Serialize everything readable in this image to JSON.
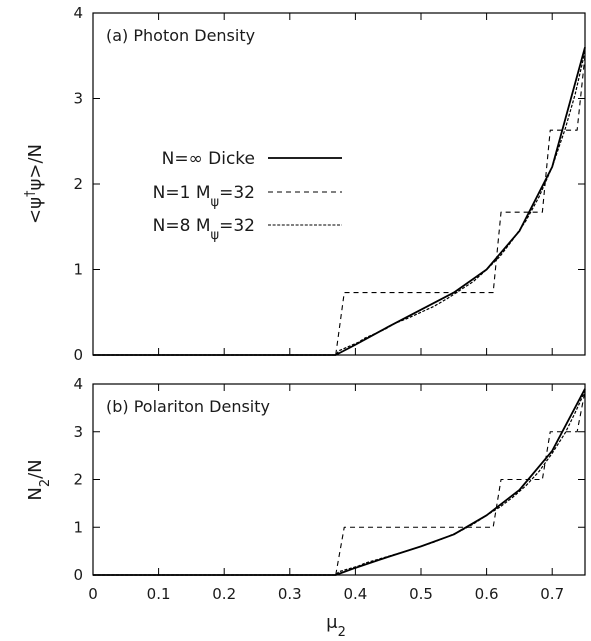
{
  "chart_data": [
    {
      "type": "line",
      "panel_title": "(a) Photon Density",
      "ylabel": "<ψ†ψ>/N",
      "xlabel": "",
      "xlim": [
        0,
        0.75
      ],
      "ylim": [
        0,
        4
      ],
      "x_ticks": [],
      "y_ticks": [
        "0",
        "1",
        "2",
        "3",
        "4"
      ],
      "legend_position": "center-left",
      "series": [
        {
          "name": "N=∞ Dicke",
          "style": "solid",
          "points": [
            [
              0,
              0
            ],
            [
              0.1,
              0
            ],
            [
              0.2,
              0
            ],
            [
              0.3,
              0
            ],
            [
              0.37,
              0
            ],
            [
              0.4,
              0.12
            ],
            [
              0.45,
              0.33
            ],
            [
              0.5,
              0.53
            ],
            [
              0.55,
              0.73
            ],
            [
              0.6,
              1.0
            ],
            [
              0.65,
              1.45
            ],
            [
              0.7,
              2.2
            ],
            [
              0.75,
              3.6
            ]
          ]
        },
        {
          "name": "N=1 Mψ=32",
          "style": "sparse-dash",
          "points": [
            [
              0,
              0
            ],
            [
              0.37,
              0
            ],
            [
              0.383,
              0.73
            ],
            [
              0.61,
              0.73
            ],
            [
              0.622,
              1.67
            ],
            [
              0.685,
              1.67
            ],
            [
              0.697,
              2.63
            ],
            [
              0.738,
              2.63
            ],
            [
              0.75,
              3.5
            ]
          ]
        },
        {
          "name": "N=8 Mψ=32",
          "style": "dense-dash",
          "points": [
            [
              0,
              0
            ],
            [
              0.37,
              0
            ],
            [
              0.375,
              0.05
            ],
            [
              0.39,
              0.1
            ],
            [
              0.405,
              0.15
            ],
            [
              0.415,
              0.2
            ],
            [
              0.43,
              0.25
            ],
            [
              0.445,
              0.3
            ],
            [
              0.46,
              0.37
            ],
            [
              0.48,
              0.43
            ],
            [
              0.5,
              0.5
            ],
            [
              0.52,
              0.57
            ],
            [
              0.54,
              0.66
            ],
            [
              0.56,
              0.76
            ],
            [
              0.58,
              0.86
            ],
            [
              0.6,
              1.0
            ],
            [
              0.62,
              1.15
            ],
            [
              0.64,
              1.35
            ],
            [
              0.66,
              1.57
            ],
            [
              0.68,
              1.85
            ],
            [
              0.7,
              2.2
            ],
            [
              0.72,
              2.65
            ],
            [
              0.735,
              3.05
            ],
            [
              0.75,
              3.55
            ]
          ]
        }
      ]
    },
    {
      "type": "line",
      "panel_title": "(b) Polariton Density",
      "ylabel": "N2/N",
      "xlabel": "μ2",
      "xlim": [
        0,
        0.75
      ],
      "ylim": [
        0,
        4
      ],
      "x_ticks": [
        "0",
        "0.1",
        "0.2",
        "0.3",
        "0.4",
        "0.5",
        "0.6",
        "0.7"
      ],
      "y_ticks": [
        "0",
        "1",
        "2",
        "3",
        "4"
      ],
      "series": [
        {
          "name": "N=∞ Dicke",
          "style": "solid",
          "points": [
            [
              0,
              0
            ],
            [
              0.1,
              0
            ],
            [
              0.2,
              0
            ],
            [
              0.3,
              0
            ],
            [
              0.37,
              0
            ],
            [
              0.4,
              0.15
            ],
            [
              0.45,
              0.38
            ],
            [
              0.5,
              0.6
            ],
            [
              0.55,
              0.85
            ],
            [
              0.6,
              1.25
            ],
            [
              0.65,
              1.78
            ],
            [
              0.7,
              2.6
            ],
            [
              0.75,
              3.9
            ]
          ]
        },
        {
          "name": "N=1 Mψ=32",
          "style": "sparse-dash",
          "points": [
            [
              0,
              0
            ],
            [
              0.37,
              0
            ],
            [
              0.383,
              1.0
            ],
            [
              0.61,
              1.0
            ],
            [
              0.622,
              2.0
            ],
            [
              0.685,
              2.0
            ],
            [
              0.697,
              3.0
            ],
            [
              0.738,
              3.0
            ],
            [
              0.75,
              3.85
            ]
          ]
        },
        {
          "name": "N=8 Mψ=32",
          "style": "dense-dash",
          "points": [
            [
              0,
              0
            ],
            [
              0.37,
              0
            ],
            [
              0.375,
              0.07
            ],
            [
              0.39,
              0.13
            ],
            [
              0.405,
              0.19
            ],
            [
              0.415,
              0.25
            ],
            [
              0.43,
              0.31
            ],
            [
              0.445,
              0.37
            ],
            [
              0.46,
              0.43
            ],
            [
              0.48,
              0.51
            ],
            [
              0.5,
              0.6
            ],
            [
              0.52,
              0.69
            ],
            [
              0.54,
              0.8
            ],
            [
              0.56,
              0.92
            ],
            [
              0.58,
              1.07
            ],
            [
              0.6,
              1.25
            ],
            [
              0.62,
              1.42
            ],
            [
              0.64,
              1.63
            ],
            [
              0.66,
              1.87
            ],
            [
              0.68,
              2.17
            ],
            [
              0.7,
              2.55
            ],
            [
              0.72,
              2.98
            ],
            [
              0.735,
              3.4
            ],
            [
              0.75,
              3.85
            ]
          ]
        }
      ]
    }
  ],
  "colors": {
    "ink": "#000000",
    "text": "#1a1a1a",
    "background": "#ffffff"
  }
}
